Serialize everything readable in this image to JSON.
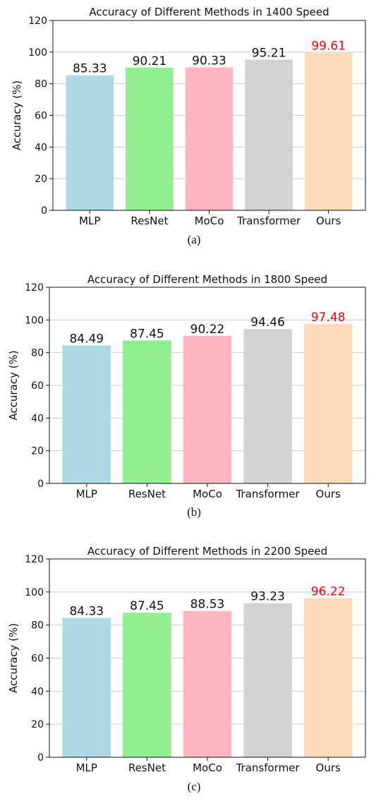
{
  "chart_data": [
    {
      "type": "bar",
      "title": "Accuracy of Different Methods in 1400 Speed",
      "ylabel": "Accuracy (%)",
      "xlabel": "",
      "ylim": [
        0,
        120
      ],
      "yticks": [
        0,
        20,
        40,
        60,
        80,
        100,
        120
      ],
      "grid": "horizontal",
      "categories": [
        "MLP",
        "ResNet",
        "MoCo",
        "Transformer",
        "Ours"
      ],
      "values": [
        85.33,
        90.21,
        90.33,
        95.21,
        99.61
      ],
      "value_labels": [
        "85.33",
        "90.21",
        "90.33",
        "95.21",
        "99.61"
      ],
      "bar_colors": [
        "#add8e6",
        "#90ee90",
        "#ffb6c1",
        "#d3d3d3",
        "#ffdab9"
      ],
      "label_colors": [
        "#111111",
        "#111111",
        "#111111",
        "#111111",
        "#ff0000"
      ],
      "caption": "(a)"
    },
    {
      "type": "bar",
      "title": "Accuracy of Different Methods in 1800 Speed",
      "ylabel": "Accuracy (%)",
      "xlabel": "",
      "ylim": [
        0,
        120
      ],
      "yticks": [
        0,
        20,
        40,
        60,
        80,
        100,
        120
      ],
      "grid": "horizontal",
      "categories": [
        "MLP",
        "ResNet",
        "MoCo",
        "Transformer",
        "Ours"
      ],
      "values": [
        84.49,
        87.45,
        90.22,
        94.46,
        97.48
      ],
      "value_labels": [
        "84.49",
        "87.45",
        "90.22",
        "94.46",
        "97.48"
      ],
      "bar_colors": [
        "#add8e6",
        "#90ee90",
        "#ffb6c1",
        "#d3d3d3",
        "#ffdab9"
      ],
      "label_colors": [
        "#111111",
        "#111111",
        "#111111",
        "#111111",
        "#ff0000"
      ],
      "caption": "(b)"
    },
    {
      "type": "bar",
      "title": "Accuracy of Different Methods in 2200 Speed",
      "ylabel": "Accuracy (%)",
      "xlabel": "",
      "ylim": [
        0,
        120
      ],
      "yticks": [
        0,
        20,
        40,
        60,
        80,
        100,
        120
      ],
      "grid": "horizontal",
      "categories": [
        "MLP",
        "ResNet",
        "MoCo",
        "Transformer",
        "Ours"
      ],
      "values": [
        84.33,
        87.45,
        88.53,
        93.23,
        96.22
      ],
      "value_labels": [
        "84.33",
        "87.45",
        "88.53",
        "93.23",
        "96.22"
      ],
      "bar_colors": [
        "#add8e6",
        "#90ee90",
        "#ffb6c1",
        "#d3d3d3",
        "#ffdab9"
      ],
      "label_colors": [
        "#111111",
        "#111111",
        "#111111",
        "#111111",
        "#ff0000"
      ],
      "caption": "(c)"
    }
  ]
}
